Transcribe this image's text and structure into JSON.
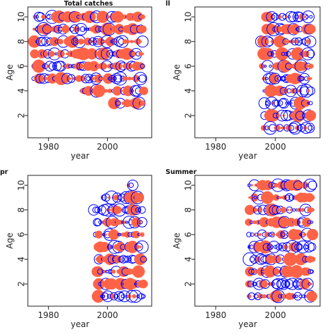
{
  "colors": {
    "positive": "#ff6347",
    "negative": "#0000ff",
    "axis": "#222222"
  },
  "chart_data": [
    {
      "type": "scatter",
      "title": "Total catches",
      "xlabel": "year",
      "ylabel": "Age",
      "xlim": [
        1973,
        2015
      ],
      "ylim": [
        0.2,
        10.8
      ],
      "xticks": [
        1980,
        2000
      ],
      "yticks": [
        2,
        4,
        6,
        8,
        10
      ],
      "rows": [
        {
          "age": 10,
          "years": [
            1975,
            2012
          ],
          "pattern": "mixed-pos",
          "seed": 1
        },
        {
          "age": 9,
          "years": [
            1975,
            2012
          ],
          "pattern": "mixed",
          "seed": 2
        },
        {
          "age": 8,
          "years": [
            1975,
            2012
          ],
          "pattern": "mixed",
          "seed": 3
        },
        {
          "age": 7,
          "years": [
            1975,
            2012
          ],
          "pattern": "mixed-pos",
          "seed": 4
        },
        {
          "age": 6,
          "years": [
            1975,
            2012
          ],
          "pattern": "mixed",
          "seed": 5
        },
        {
          "age": 5,
          "years": [
            1975,
            2012
          ],
          "pattern": "mixed-neg",
          "seed": 6
        },
        {
          "age": 4,
          "years": [
            1991,
            2012
          ],
          "pattern": "mixed",
          "seed": 7
        },
        {
          "age": 3,
          "years": [
            2002,
            2012
          ],
          "pattern": "mixed",
          "seed": 8
        }
      ]
    },
    {
      "type": "scatter",
      "title": "ll",
      "xlabel": "year",
      "ylabel": "Age",
      "xlim": [
        1973,
        2015
      ],
      "ylim": [
        0.2,
        10.8
      ],
      "xticks": [
        1980,
        2000
      ],
      "yticks": [
        2,
        4,
        6,
        8,
        10
      ],
      "rows": [
        {
          "age": 10,
          "years": [
            1996,
            2012
          ],
          "pattern": "mixed-neg",
          "seed": 11
        },
        {
          "age": 9,
          "years": [
            1996,
            2012
          ],
          "pattern": "mixed",
          "seed": 12
        },
        {
          "age": 8,
          "years": [
            1995,
            2012
          ],
          "pattern": "mixed",
          "seed": 13
        },
        {
          "age": 7,
          "years": [
            1995,
            2012
          ],
          "pattern": "mixed",
          "seed": 14
        },
        {
          "age": 6,
          "years": [
            1995,
            2012
          ],
          "pattern": "mixed-pos",
          "seed": 15
        },
        {
          "age": 5,
          "years": [
            1996,
            2012
          ],
          "pattern": "mixed",
          "seed": 16
        },
        {
          "age": 4,
          "years": [
            1996,
            2012
          ],
          "pattern": "mixed",
          "seed": 17
        },
        {
          "age": 3,
          "years": [
            1996,
            2012
          ],
          "pattern": "mixed-neg",
          "seed": 18
        },
        {
          "age": 2,
          "years": [
            1996,
            2012
          ],
          "pattern": "mixed",
          "seed": 19
        },
        {
          "age": 1,
          "years": [
            1996,
            2012
          ],
          "pattern": "mixed",
          "seed": 20
        }
      ]
    },
    {
      "type": "scatter",
      "title": "pr",
      "xlabel": "year",
      "ylabel": "Age",
      "xlim": [
        1973,
        2015
      ],
      "ylim": [
        0.2,
        10.8
      ],
      "xticks": [
        1980,
        2000
      ],
      "yticks": [
        2,
        4,
        6,
        8,
        10
      ],
      "rows": [
        {
          "age": 10,
          "years": [
            2007,
            2009
          ],
          "pattern": "sparse",
          "seed": 21
        },
        {
          "age": 9,
          "years": [
            1998,
            2012
          ],
          "pattern": "mixed-neg",
          "seed": 22
        },
        {
          "age": 8,
          "years": [
            1995,
            2012
          ],
          "pattern": "mixed",
          "seed": 23
        },
        {
          "age": 7,
          "years": [
            1996,
            2012
          ],
          "pattern": "mixed",
          "seed": 24
        },
        {
          "age": 6,
          "years": [
            1996,
            2012
          ],
          "pattern": "mixed",
          "seed": 25
        },
        {
          "age": 5,
          "years": [
            1996,
            2012
          ],
          "pattern": "mixed",
          "seed": 26
        },
        {
          "age": 4,
          "years": [
            1996,
            2012
          ],
          "pattern": "mixed-neg",
          "seed": 27
        },
        {
          "age": 3,
          "years": [
            1996,
            2012
          ],
          "pattern": "mixed",
          "seed": 28
        },
        {
          "age": 2,
          "years": [
            1996,
            2012
          ],
          "pattern": "mixed",
          "seed": 29
        },
        {
          "age": 1,
          "years": [
            1996,
            2012
          ],
          "pattern": "mixed-neg",
          "seed": 30
        }
      ]
    },
    {
      "type": "scatter",
      "title": "Summer",
      "xlabel": "year",
      "ylabel": "Age",
      "xlim": [
        1973,
        2015
      ],
      "ylim": [
        0.2,
        10.8
      ],
      "xticks": [
        1980,
        2000
      ],
      "yticks": [
        2,
        4,
        6,
        8,
        10
      ],
      "rows": [
        {
          "age": 10,
          "years": [
            1991,
            2012
          ],
          "pattern": "mixed",
          "seed": 31
        },
        {
          "age": 9,
          "years": [
            1991,
            2012
          ],
          "pattern": "mixed",
          "seed": 32
        },
        {
          "age": 8,
          "years": [
            1991,
            2012
          ],
          "pattern": "mixed",
          "seed": 33
        },
        {
          "age": 7,
          "years": [
            1991,
            2012
          ],
          "pattern": "mixed",
          "seed": 34
        },
        {
          "age": 6,
          "years": [
            1991,
            2012
          ],
          "pattern": "mixed",
          "seed": 35
        },
        {
          "age": 5,
          "years": [
            1991,
            2012
          ],
          "pattern": "mixed-neg",
          "seed": 36
        },
        {
          "age": 4,
          "years": [
            1991,
            2012
          ],
          "pattern": "mixed",
          "seed": 37
        },
        {
          "age": 3,
          "years": [
            1991,
            2012
          ],
          "pattern": "mixed",
          "seed": 38
        },
        {
          "age": 2,
          "years": [
            1991,
            2012
          ],
          "pattern": "mixed-neg",
          "seed": 39
        },
        {
          "age": 1,
          "years": [
            1991,
            2012
          ],
          "pattern": "mixed",
          "seed": 40
        }
      ]
    }
  ]
}
